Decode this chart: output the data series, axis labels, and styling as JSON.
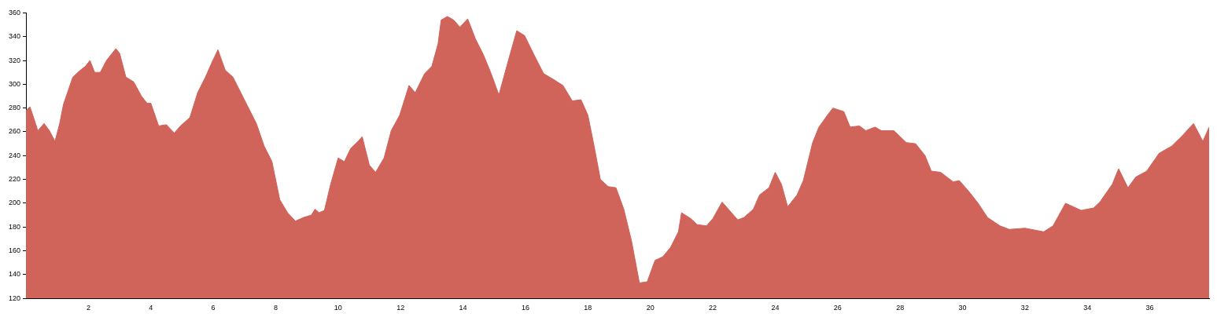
{
  "chart_data": {
    "type": "area",
    "x": [
      0,
      0.13,
      0.38,
      0.58,
      0.75,
      0.93,
      1.08,
      1.2,
      1.5,
      1.75,
      1.9,
      2.05,
      2.2,
      2.38,
      2.58,
      2.88,
      3.0,
      3.2,
      3.45,
      3.7,
      3.88,
      4.0,
      4.25,
      4.5,
      4.75,
      4.95,
      5.25,
      5.5,
      5.75,
      5.95,
      6.15,
      6.38,
      6.63,
      6.88,
      7.13,
      7.38,
      7.63,
      7.88,
      8.13,
      8.38,
      8.63,
      8.89,
      9.14,
      9.26,
      9.39,
      9.56,
      9.76,
      10.0,
      10.2,
      10.4,
      10.64,
      10.77,
      11.0,
      11.2,
      11.47,
      11.7,
      11.97,
      12.27,
      12.47,
      12.77,
      13.0,
      13.2,
      13.3,
      13.5,
      13.7,
      13.9,
      14.15,
      14.4,
      14.65,
      14.9,
      15.15,
      15.4,
      15.72,
      15.97,
      16.27,
      16.58,
      16.9,
      17.2,
      17.5,
      17.78,
      18.0,
      18.2,
      18.4,
      18.65,
      18.9,
      19.15,
      19.4,
      19.65,
      19.9,
      20.15,
      20.4,
      20.65,
      20.9,
      21.0,
      21.3,
      21.5,
      21.8,
      22.0,
      22.3,
      22.5,
      22.8,
      23.0,
      23.3,
      23.5,
      23.8,
      24.0,
      24.2,
      24.4,
      24.7,
      24.9,
      25.2,
      25.4,
      25.7,
      25.85,
      26.2,
      26.4,
      26.7,
      26.9,
      27.2,
      27.4,
      27.8,
      28.2,
      28.5,
      28.8,
      29.0,
      29.3,
      29.7,
      29.9,
      30.2,
      30.5,
      30.8,
      31.2,
      31.5,
      32.0,
      32.6,
      32.9,
      33.3,
      33.55,
      33.8,
      34.2,
      34.4,
      34.8,
      35.0,
      35.3,
      35.55,
      35.9,
      36.3,
      36.7,
      37.05,
      37.4,
      37.7,
      37.9
    ],
    "series": [
      {
        "color": "#d0635a",
        "values": [
          278,
          281,
          261,
          267,
          261,
          252,
          267,
          283,
          306,
          312,
          315,
          320,
          310,
          310,
          320,
          330,
          326,
          306,
          302,
          290,
          284,
          284,
          265,
          266,
          259,
          265,
          272,
          293,
          306,
          318,
          329,
          312,
          306,
          293,
          280,
          267,
          248,
          235,
          203,
          192,
          185,
          188,
          190,
          195,
          192,
          194,
          216,
          238,
          235,
          246,
          252,
          256,
          232,
          226,
          238,
          261,
          274,
          299,
          293,
          309,
          315,
          334,
          354,
          357,
          354,
          348,
          355,
          338,
          325,
          309,
          291,
          315,
          345,
          341,
          325,
          309,
          304,
          299,
          286,
          287,
          274,
          248,
          220,
          214,
          213,
          195,
          168,
          133,
          134,
          152,
          155,
          163,
          176,
          192,
          187,
          182,
          181,
          187,
          201,
          195,
          186,
          188,
          195,
          207,
          213,
          226,
          216,
          197,
          207,
          219,
          251,
          264,
          275,
          280,
          277,
          264,
          265,
          261,
          264,
          261,
          261,
          251,
          250,
          240,
          227,
          226,
          218,
          219,
          210,
          200,
          188,
          181,
          178,
          179,
          176,
          181,
          200,
          197,
          194,
          196,
          201,
          216,
          229,
          213,
          222,
          227,
          242,
          248,
          257,
          267,
          252,
          264
        ]
      }
    ],
    "xlim": [
      0,
      37.9
    ],
    "xticks": [
      2,
      4,
      6,
      8,
      10,
      12,
      14,
      16,
      18,
      20,
      22,
      24,
      26,
      28,
      30,
      32,
      34,
      36
    ],
    "ylim": [
      120,
      360
    ],
    "yticks": [
      120,
      140,
      160,
      180,
      200,
      220,
      240,
      260,
      280,
      300,
      320,
      340,
      360
    ],
    "grid": false,
    "legend": false
  }
}
